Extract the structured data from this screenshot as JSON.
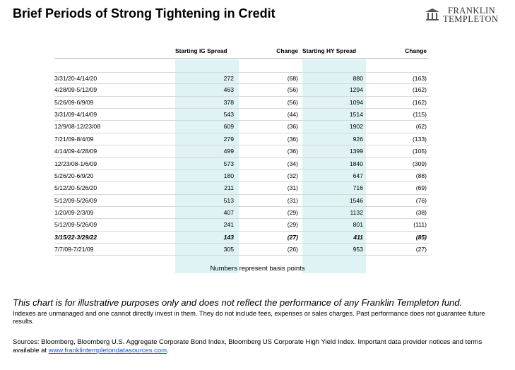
{
  "header": {
    "title": "Brief Periods of Strong Tightening in Credit",
    "logo": [
      "FRANKLIN",
      "TEMPLETON"
    ]
  },
  "table": {
    "columns": [
      "",
      "Starting IG Spread",
      "Change",
      "Starting HY Spread",
      "Change"
    ],
    "rows": [
      [
        "3/31/20-4/14/20",
        "272",
        "(68)",
        "880",
        "(163)"
      ],
      [
        "4/28/09-5/12/09",
        "463",
        "(56)",
        "1294",
        "(162)"
      ],
      [
        "5/26/09-6/9/09",
        "378",
        "(56)",
        "1094",
        "(162)"
      ],
      [
        "3/31/09-4/14/09",
        "543",
        "(44)",
        "1514",
        "(115)"
      ],
      [
        "12/9/08-12/23/08",
        "609",
        "(36)",
        "1902",
        "(62)"
      ],
      [
        "7/21/09-8/4/09",
        "279",
        "(36)",
        "926",
        "(133)"
      ],
      [
        "4/14/09-4/28/09",
        "499",
        "(36)",
        "1399",
        "(105)"
      ],
      [
        "12/23/08-1/6/09",
        "573",
        "(34)",
        "1840",
        "(309)"
      ],
      [
        "5/26/20-6/9/20",
        "180",
        "(32)",
        "647",
        "(88)"
      ],
      [
        "5/12/20-5/26/20",
        "211",
        "(31)",
        "716",
        "(69)"
      ],
      [
        "5/12/09-5/26/09",
        "513",
        "(31)",
        "1546",
        "(76)"
      ],
      [
        "1/20/09-2/3/09",
        "407",
        "(29)",
        "1132",
        "(38)"
      ],
      [
        "5/12/09-5/26/09",
        "241",
        "(29)",
        "801",
        "(111)"
      ],
      [
        "3/15/22-3/29/22",
        "143",
        "(27)",
        "411",
        "(85)"
      ],
      [
        "7/7/09-7/21/09",
        "305",
        "(26)",
        "953",
        "(27)"
      ]
    ],
    "note": "Numbers represent basis points"
  },
  "footer": {
    "disclaimer": "This chart is for illustrative purposes only and does not reflect the performance of any Franklin Templeton fund.",
    "indexes": "Indexes are unmanaged and one cannot directly invest in them. They do not include fees, expenses or sales charges. Past performance does not guarantee future results.",
    "sources": "Sources: Bloomberg, Bloomberg U.S. Aggregate Corporate Bond Index, Bloomberg US Corporate High Yield Index. Important data provider notices and terms available at ",
    "link": "www.franklintempletondatasources.com",
    "sources_end": "."
  }
}
